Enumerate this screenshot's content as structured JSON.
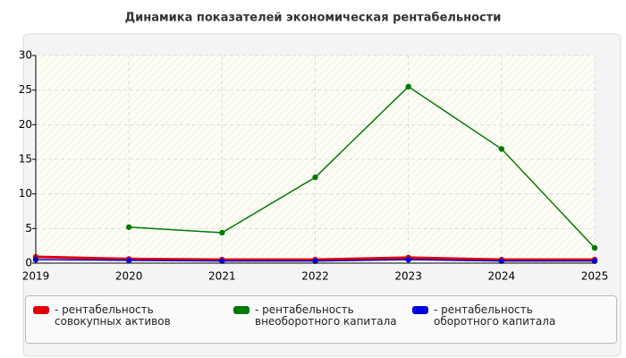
{
  "chart_data": {
    "type": "line",
    "title": "Динамика показателей экономическая рентабельности",
    "categories": [
      "2019",
      "2020",
      "2021",
      "2022",
      "2023",
      "2024",
      "2025"
    ],
    "series": [
      {
        "name": "- рентабельность совокупных активов",
        "color": "#e00000",
        "values": [
          0.9,
          0.6,
          0.5,
          0.5,
          0.8,
          0.5,
          0.5
        ]
      },
      {
        "name": "- рентабельность внеоборотного капитала",
        "color": "#007a00",
        "values": [
          null,
          5.2,
          4.4,
          12.4,
          25.5,
          16.5,
          2.2
        ]
      },
      {
        "name": "- рентабельность оборотного капитала",
        "color": "#0000e0",
        "values": [
          0.5,
          0.4,
          0.3,
          0.3,
          0.5,
          0.3,
          0.3
        ]
      }
    ],
    "ylim": [
      0,
      30
    ],
    "yticks": [
      0,
      5,
      10,
      15,
      20,
      25,
      30
    ],
    "grid": true
  }
}
